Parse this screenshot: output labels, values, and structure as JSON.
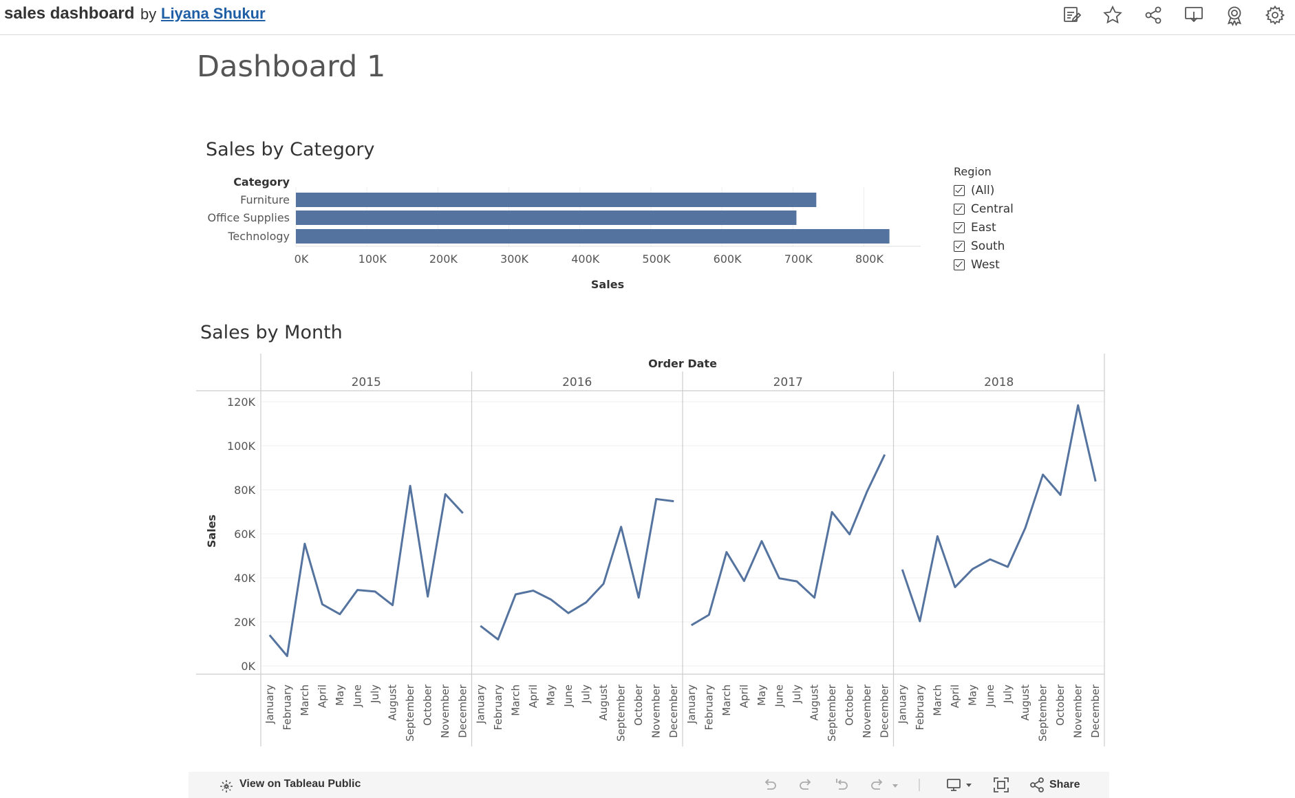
{
  "header": {
    "title": "sales dashboard",
    "by": "by",
    "author": "Liyana Shukur",
    "icons": [
      "edit-icon",
      "star-icon",
      "share-icon",
      "download-icon",
      "badge-icon",
      "settings-icon"
    ]
  },
  "dashboard": {
    "title": "Dashboard 1"
  },
  "category_chart": {
    "title": "Sales by Category",
    "axis_title": "Category"
  },
  "region_filter": {
    "title": "Region",
    "items": [
      {
        "label": "(All)",
        "checked": true
      },
      {
        "label": "Central",
        "checked": true
      },
      {
        "label": "East",
        "checked": true
      },
      {
        "label": "South",
        "checked": true
      },
      {
        "label": "West",
        "checked": true
      }
    ]
  },
  "month_chart": {
    "title": "Sales by Month",
    "column_header": "Order Date"
  },
  "footer": {
    "view_on": "View on Tableau Public",
    "share": "Share"
  },
  "colors": {
    "series": "#55739f",
    "link": "#1f5fa6"
  },
  "chart_data": [
    {
      "type": "bar",
      "orientation": "horizontal",
      "title": "Sales by Category",
      "ylabel": "Category",
      "xlabel": "Sales",
      "categories": [
        "Furniture",
        "Office Supplies",
        "Technology"
      ],
      "values": [
        733000,
        705000,
        836000
      ],
      "xlim": [
        0,
        880000
      ],
      "xticks": [
        0,
        100000,
        200000,
        300000,
        400000,
        500000,
        600000,
        700000,
        800000
      ],
      "xtick_labels": [
        "0K",
        "100K",
        "200K",
        "300K",
        "400K",
        "500K",
        "600K",
        "700K",
        "800K"
      ]
    },
    {
      "type": "line",
      "title": "Sales by Month",
      "xlabel": "Order Date",
      "ylabel": "Sales",
      "ylim": [
        0,
        120000
      ],
      "yticks": [
        0,
        20000,
        40000,
        60000,
        80000,
        100000,
        120000
      ],
      "ytick_labels": [
        "0K",
        "20K",
        "40K",
        "60K",
        "80K",
        "100K",
        "120K"
      ],
      "months": [
        "January",
        "February",
        "March",
        "April",
        "May",
        "June",
        "July",
        "August",
        "September",
        "October",
        "November",
        "December"
      ],
      "panels": [
        {
          "year": "2015",
          "values": [
            14000,
            4500,
            55500,
            28000,
            23500,
            34500,
            33800,
            27600,
            81800,
            31500,
            78000,
            69400
          ]
        },
        {
          "year": "2016",
          "values": [
            18200,
            12000,
            32500,
            34200,
            30200,
            24000,
            28800,
            37300,
            63200,
            31000,
            75800,
            74800
          ]
        },
        {
          "year": "2017",
          "values": [
            18500,
            23200,
            51700,
            38600,
            56700,
            39800,
            38400,
            31000,
            69900,
            59800,
            79300,
            96000
          ]
        },
        {
          "year": "2018",
          "values": [
            43800,
            20300,
            58900,
            35800,
            44000,
            48400,
            45000,
            62700,
            86900,
            77700,
            118400,
            83800
          ]
        }
      ],
      "grid": true
    }
  ]
}
